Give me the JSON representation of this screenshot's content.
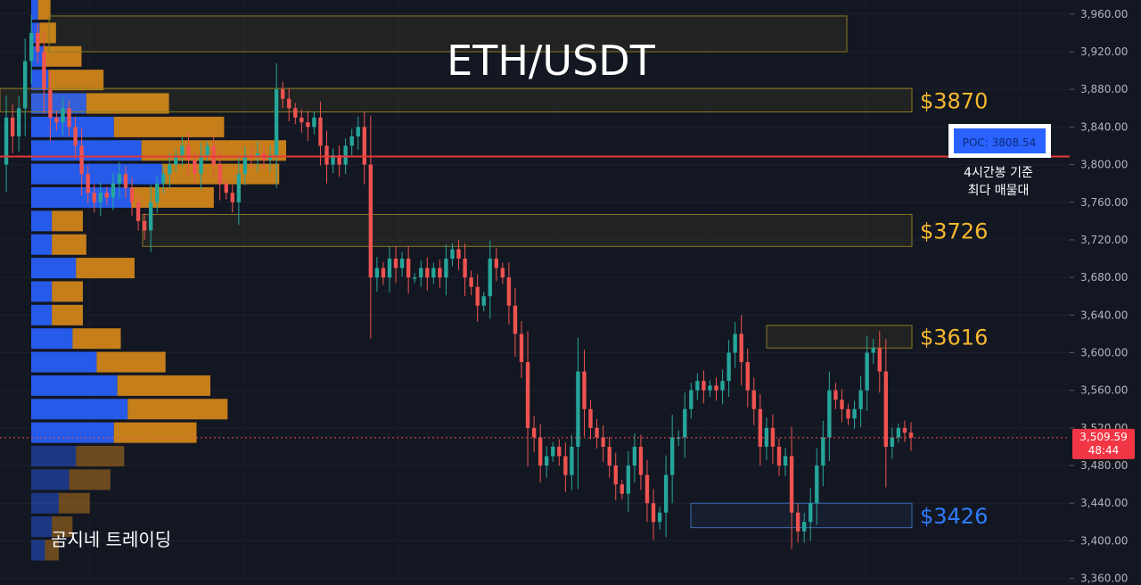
{
  "title": "ETH/USDT",
  "watermark": "곰지네 트레이딩",
  "poc_badge": "POC: 3808.54",
  "poc_note_line1": "4시간봉 기준",
  "poc_note_line2": "최다 매물대",
  "current_price_label": "3,509.59",
  "countdown_label": "48:44",
  "colors": {
    "background": "#131722",
    "up": "#26a69a",
    "down": "#ef5350",
    "poc_line": "#e53935",
    "zone_label_gold": "#f5b82e",
    "zone_label_blue": "#2f7bff",
    "vp_blue": "#2962ff",
    "vp_orange": "#d98a1a"
  },
  "zones": [
    {
      "label": "",
      "low": 3920,
      "high": 3958,
      "color": "gold"
    },
    {
      "label": "$3870",
      "low": 3856,
      "high": 3881,
      "color": "gold"
    },
    {
      "label": "$3726",
      "low": 3713,
      "high": 3747,
      "color": "gold"
    },
    {
      "label": "$3616",
      "low": 3605,
      "high": 3629,
      "color": "gold"
    },
    {
      "label": "$3426",
      "low": 3414,
      "high": 3440,
      "color": "blue"
    }
  ],
  "chart_data": {
    "type": "candlestick",
    "y_axis_ticks": [
      "3,960.00",
      "3,920.00",
      "3,880.00",
      "3,840.00",
      "3,800.00",
      "3,760.00",
      "3,720.00",
      "3,680.00",
      "3,640.00",
      "3,600.00",
      "3,560.00",
      "3,520.00",
      "3,480.00",
      "3,440.00",
      "3,400.00",
      "3,360.00"
    ],
    "ylim": [
      3353,
      3975
    ],
    "poc_price": 3808.54,
    "current_price": 3509.59,
    "price_path": [
      3800,
      3850,
      3830,
      3860,
      3910,
      3940,
      3920,
      3880,
      3850,
      3845,
      3860,
      3840,
      3820,
      3790,
      3770,
      3760,
      3770,
      3765,
      3780,
      3790,
      3775,
      3760,
      3740,
      3730,
      3760,
      3780,
      3790,
      3800,
      3810,
      3820,
      3805,
      3790,
      3810,
      3820,
      3800,
      3780,
      3770,
      3760,
      3790,
      3810,
      3808,
      3812,
      3805,
      3810,
      3880,
      3870,
      3860,
      3850,
      3845,
      3840,
      3850,
      3820,
      3800,
      3810,
      3800,
      3820,
      3830,
      3840,
      3800,
      3680,
      3690,
      3680,
      3700,
      3690,
      3700,
      3680,
      3680,
      3690,
      3680,
      3690,
      3680,
      3700,
      3710,
      3700,
      3680,
      3670,
      3650,
      3660,
      3700,
      3690,
      3680,
      3650,
      3620,
      3590,
      3520,
      3510,
      3480,
      3490,
      3500,
      3490,
      3470,
      3500,
      3580,
      3540,
      3520,
      3510,
      3500,
      3480,
      3460,
      3450,
      3480,
      3500,
      3470,
      3440,
      3420,
      3430,
      3470,
      3510,
      3510,
      3540,
      3560,
      3570,
      3560,
      3565,
      3560,
      3570,
      3600,
      3620,
      3590,
      3560,
      3540,
      3500,
      3520,
      3500,
      3480,
      3490,
      3430,
      3410,
      3420,
      3440,
      3480,
      3510,
      3560,
      3550,
      3540,
      3530,
      3540,
      3560,
      3600,
      3605,
      3580,
      3500,
      3510,
      3520,
      3515,
      3509.59
    ],
    "volume_profile": [
      {
        "price": 3965,
        "blue": 10,
        "orange": 18
      },
      {
        "price": 3940,
        "blue": 12,
        "orange": 24
      },
      {
        "price": 3915,
        "blue": 18,
        "orange": 55
      },
      {
        "price": 3890,
        "blue": 25,
        "orange": 80
      },
      {
        "price": 3865,
        "blue": 80,
        "orange": 120
      },
      {
        "price": 3840,
        "blue": 120,
        "orange": 160
      },
      {
        "price": 3815,
        "blue": 160,
        "orange": 210
      },
      {
        "price": 3790,
        "blue": 190,
        "orange": 170
      },
      {
        "price": 3765,
        "blue": 145,
        "orange": 120
      },
      {
        "price": 3740,
        "blue": 30,
        "orange": 45
      },
      {
        "price": 3715,
        "blue": 30,
        "orange": 50
      },
      {
        "price": 3690,
        "blue": 65,
        "orange": 85
      },
      {
        "price": 3665,
        "blue": 30,
        "orange": 45
      },
      {
        "price": 3640,
        "blue": 30,
        "orange": 45
      },
      {
        "price": 3615,
        "blue": 60,
        "orange": 70
      },
      {
        "price": 3590,
        "blue": 95,
        "orange": 100
      },
      {
        "price": 3565,
        "blue": 125,
        "orange": 135
      },
      {
        "price": 3540,
        "blue": 140,
        "orange": 145
      },
      {
        "price": 3515,
        "blue": 120,
        "orange": 120
      },
      {
        "price": 3490,
        "blue": 65,
        "orange": 70
      },
      {
        "price": 3465,
        "blue": 55,
        "orange": 60
      },
      {
        "price": 3440,
        "blue": 40,
        "orange": 45
      },
      {
        "price": 3415,
        "blue": 30,
        "orange": 30
      },
      {
        "price": 3390,
        "blue": 20,
        "orange": 20
      }
    ]
  }
}
